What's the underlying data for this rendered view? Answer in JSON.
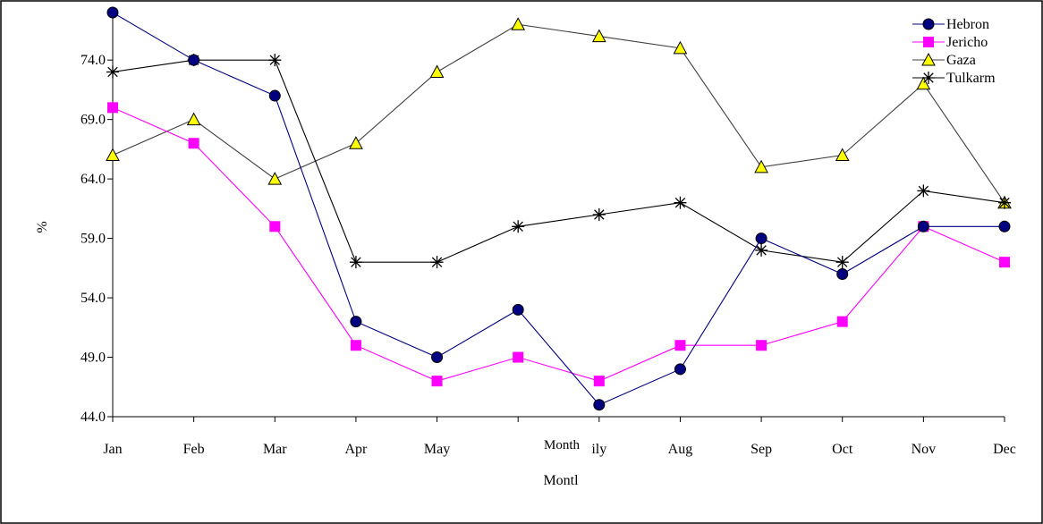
{
  "colors": {
    "hebron": "#000080",
    "jericho": "#ff00ff",
    "gaza": "#ffff00",
    "tulkarm": "#000000",
    "gaza_line": "#404040",
    "axis": "#000000",
    "frame": "#000000"
  },
  "overlay_text": "Month",
  "chart_data": {
    "type": "line",
    "title": "",
    "xlabel": "Montl",
    "ylabel": "%",
    "ylim": [
      44,
      78
    ],
    "yticks": [
      "44.0",
      "49.0",
      "54.0",
      "59.0",
      "64.0",
      "69.0",
      "74.0"
    ],
    "ytick_values": [
      44,
      49,
      54,
      59,
      64,
      69,
      74
    ],
    "categories": [
      "Jan",
      "Feb",
      "Mar",
      "Apr",
      "May",
      "",
      "ily",
      "Aug",
      "Sep",
      "Oct",
      "Nov",
      "Dec"
    ],
    "grid": false,
    "legend_position": "top-right",
    "series": [
      {
        "name": "Hebron",
        "marker": "circle",
        "color_key": "hebron",
        "values": [
          78,
          74,
          71,
          52,
          49,
          53,
          45,
          48,
          59,
          56,
          60,
          60
        ]
      },
      {
        "name": "Jericho",
        "marker": "square",
        "color_key": "jericho",
        "values": [
          70,
          67,
          60,
          50,
          47,
          49,
          47,
          50,
          50,
          52,
          60,
          57
        ]
      },
      {
        "name": "Gaza",
        "marker": "triangle",
        "color_key": "gaza",
        "values": [
          66,
          69,
          64,
          67,
          73,
          77,
          76,
          75,
          65,
          66,
          72,
          62
        ]
      },
      {
        "name": "Tulkarm",
        "marker": "star",
        "color_key": "tulkarm",
        "values": [
          73,
          74,
          74,
          57,
          57,
          60,
          61,
          62,
          58,
          57,
          63,
          62
        ]
      }
    ]
  }
}
